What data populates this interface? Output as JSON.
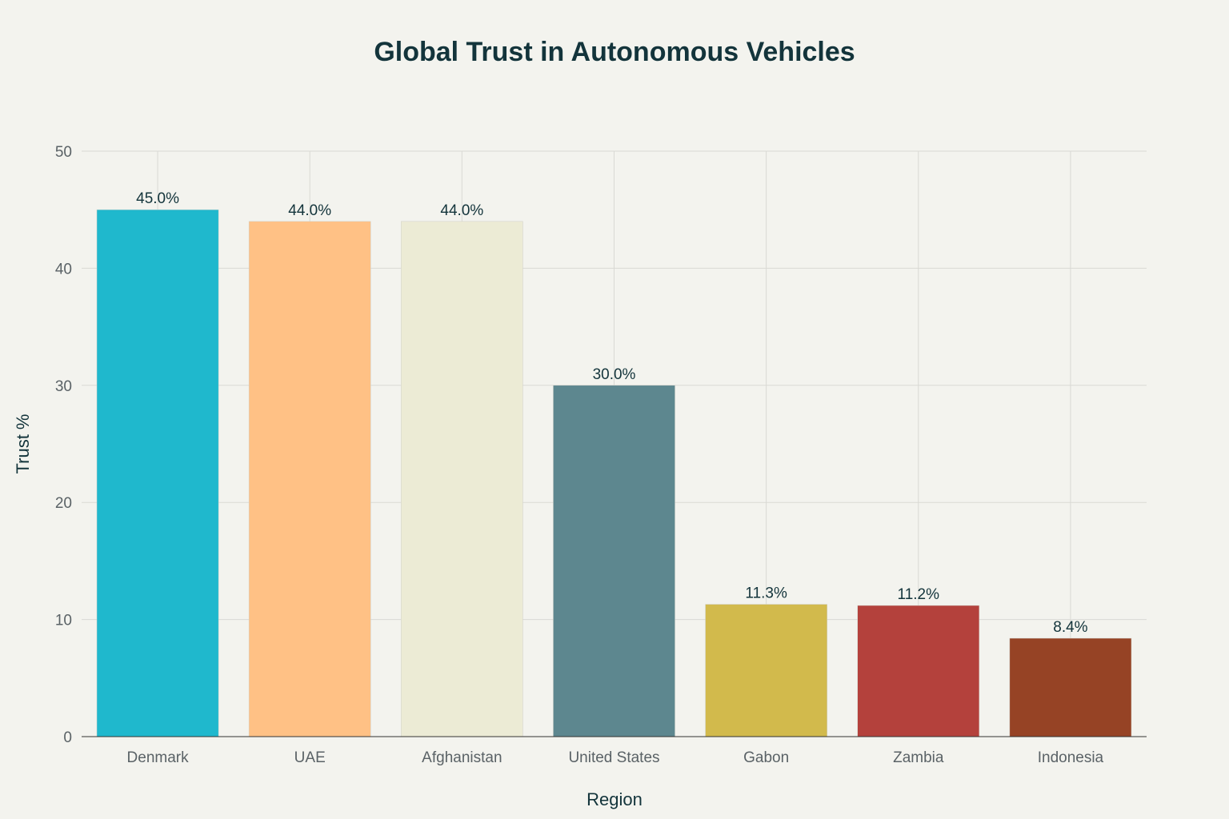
{
  "chart_data": {
    "type": "bar",
    "title": "Global Trust in Autonomous Vehicles",
    "xlabel": "Region",
    "ylabel": "Trust %",
    "ylim": [
      0,
      50
    ],
    "yticks": [
      0,
      10,
      20,
      30,
      40,
      50
    ],
    "grid": true,
    "categories": [
      "Denmark",
      "UAE",
      "Afghanistan",
      "United States",
      "Gabon",
      "Zambia",
      "Indonesia"
    ],
    "values": [
      45.0,
      44.0,
      44.0,
      30.0,
      11.3,
      11.2,
      8.4
    ],
    "data_labels": [
      "45.0%",
      "44.0%",
      "44.0%",
      "30.0%",
      "11.3%",
      "11.2%",
      "8.4%"
    ],
    "colors": [
      "#1FB8CD",
      "#FFC185",
      "#ECEBD5",
      "#5D878F",
      "#D2BA4C",
      "#B4413C",
      "#964325"
    ]
  }
}
